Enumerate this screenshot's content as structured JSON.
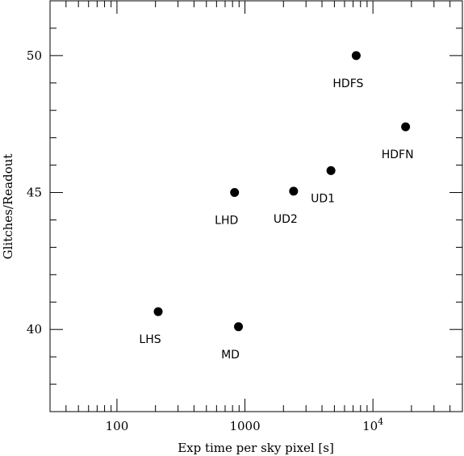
{
  "chart_data": {
    "type": "scatter",
    "title": "",
    "xlabel": "Exp time per sky pixel [s]",
    "ylabel": "Glitches/Readout",
    "xscale": "log",
    "xlim": [
      30,
      50000
    ],
    "ylim": [
      37,
      52
    ],
    "grid": false,
    "x_tick_labels": [
      {
        "value": 100,
        "base": "100",
        "exp": ""
      },
      {
        "value": 1000,
        "base": "1000",
        "exp": ""
      },
      {
        "value": 10000,
        "base": "10",
        "exp": "4"
      }
    ],
    "y_tick_labels": [
      {
        "value": 40,
        "text": "40"
      },
      {
        "value": 45,
        "text": "45"
      },
      {
        "value": 50,
        "text": "50"
      }
    ],
    "y_minor_step": 1,
    "points": [
      {
        "label": "HDFS",
        "x": 7400,
        "y": 50.0
      },
      {
        "label": "HDFN",
        "x": 18000,
        "y": 47.4
      },
      {
        "label": "UD1",
        "x": 4700,
        "y": 45.8
      },
      {
        "label": "UD2",
        "x": 2400,
        "y": 45.05
      },
      {
        "label": "LHD",
        "x": 830,
        "y": 45.0
      },
      {
        "label": "LHS",
        "x": 210,
        "y": 40.65
      },
      {
        "label": "MD",
        "x": 890,
        "y": 40.1
      }
    ]
  }
}
